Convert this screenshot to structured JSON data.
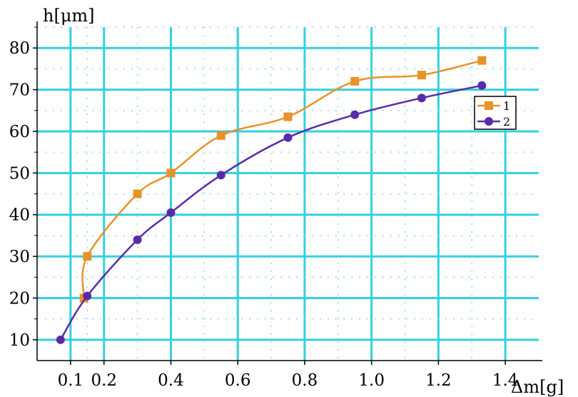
{
  "chart_data": {
    "type": "line",
    "xlabel": "Δm[g]",
    "ylabel": "h[μm]",
    "xlim": [
      0.0,
      1.5
    ],
    "ylim": [
      5,
      85
    ],
    "x_ticks": [
      0.1,
      0.2,
      0.4,
      0.6,
      0.8,
      1.0,
      1.2,
      1.4
    ],
    "x_tick_labels": [
      "0.1",
      "0.2",
      "0.4",
      "0.6",
      "0.8",
      "1.0",
      "1.2",
      "1.4"
    ],
    "y_ticks": [
      10,
      20,
      30,
      40,
      50,
      60,
      70,
      80
    ],
    "y_tick_labels": [
      "10",
      "20",
      "30",
      "40",
      "50",
      "60",
      "70",
      "80"
    ],
    "grid": true,
    "legend_position": "right",
    "series": [
      {
        "name": "1",
        "color": "#e8922a",
        "marker": "square",
        "x": [
          0.14,
          0.15,
          0.3,
          0.4,
          0.55,
          0.75,
          0.95,
          1.15,
          1.33
        ],
        "y": [
          20,
          30,
          45,
          50,
          59,
          63.5,
          72,
          73.5,
          77
        ]
      },
      {
        "name": "2",
        "color": "#5a2ba8",
        "marker": "circle",
        "x": [
          0.07,
          0.15,
          0.3,
          0.4,
          0.55,
          0.75,
          0.95,
          1.15,
          1.33
        ],
        "y": [
          10,
          20.5,
          34,
          40.5,
          49.5,
          58.5,
          64,
          68,
          71
        ]
      }
    ],
    "grid_color": "#33d0e0",
    "axis_color": "#000000"
  }
}
